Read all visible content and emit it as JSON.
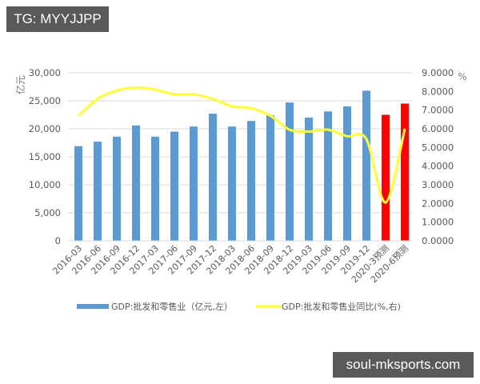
{
  "watermarks": {
    "top_left": "TG: MYYJJPP",
    "bottom_right": "soul-mksports.com"
  },
  "colors": {
    "bar_actual": "#5B9BD5",
    "bar_forecast": "#FF0000",
    "line": "#FFFF33",
    "grid": "#D9D9D9"
  },
  "axes": {
    "left_unit": "亿元",
    "right_unit": "%",
    "left_ticks": [
      "0",
      "5,000",
      "10,000",
      "15,000",
      "20,000",
      "25,000",
      "30,000"
    ],
    "right_ticks": [
      "0.0000",
      "1.0000",
      "2.0000",
      "3.0000",
      "4.0000",
      "5.0000",
      "6.0000",
      "7.0000",
      "8.0000",
      "9.0000"
    ]
  },
  "legend": {
    "bar_label": "GDP:批发和零售业（亿元,左）",
    "line_label": "GDP:批发和零售业同比(%,右)"
  },
  "chart_data": {
    "type": "bar",
    "title": "",
    "xlabel": "",
    "ylabel": "亿元",
    "y2label": "%",
    "ylim": [
      0,
      30000
    ],
    "y2lim": [
      0,
      9
    ],
    "grid": true,
    "legend_position": "bottom",
    "categories": [
      "2016-03",
      "2016-06",
      "2016-09",
      "2016-12",
      "2017-03",
      "2017-06",
      "2017-09",
      "2017-12",
      "2018-03",
      "2018-06",
      "2018-09",
      "2018-12",
      "2019-03",
      "2019-06",
      "2019-09",
      "2019-12",
      "2020-3预测",
      "2020-6预测"
    ],
    "series": [
      {
        "name": "GDP:批发和零售业（亿元,左）",
        "type": "bar",
        "axis": "left",
        "values": [
          16900,
          17700,
          18600,
          20600,
          18600,
          19500,
          20400,
          22700,
          20400,
          21400,
          22400,
          24700,
          22000,
          23100,
          24000,
          26800,
          22500,
          24500
        ],
        "forecast_flags": [
          false,
          false,
          false,
          false,
          false,
          false,
          false,
          false,
          false,
          false,
          false,
          false,
          false,
          false,
          false,
          false,
          true,
          true
        ]
      },
      {
        "name": "GDP:批发和零售业同比(%,右)",
        "type": "line",
        "axis": "right",
        "values": [
          6.7,
          7.6,
          8.05,
          8.2,
          8.1,
          7.85,
          7.85,
          7.6,
          7.2,
          7.1,
          6.7,
          5.95,
          5.85,
          5.95,
          5.6,
          5.45,
          2.05,
          6.0
        ]
      }
    ]
  }
}
